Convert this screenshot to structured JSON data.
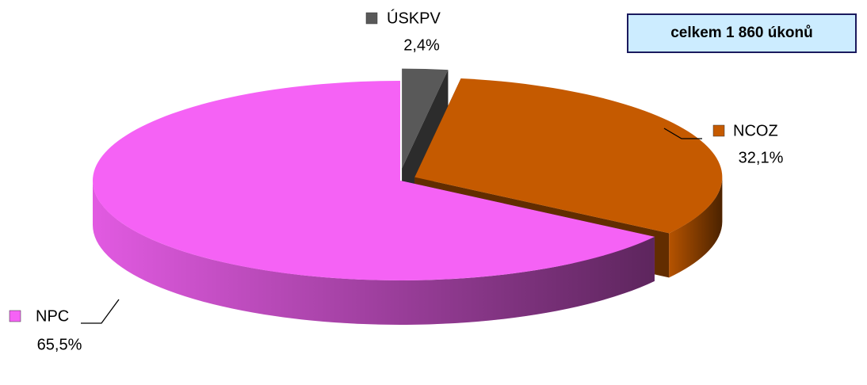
{
  "chart_data": {
    "type": "pie",
    "categories": [
      "ÚSKPV",
      "NCOZ",
      "NPC"
    ],
    "values": [
      2.4,
      32.1,
      65.5
    ],
    "value_labels": [
      "2,4%",
      "32,1%",
      "65,5%"
    ],
    "colors": [
      "#595959",
      "#c55a00",
      "#f562f5"
    ],
    "annotation": "celkem 1 860 úkonů"
  }
}
